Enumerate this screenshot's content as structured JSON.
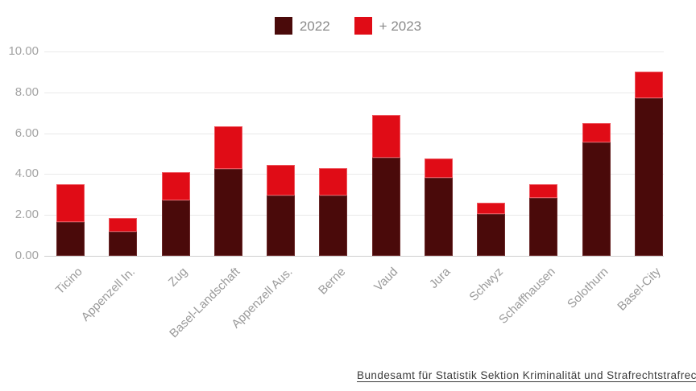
{
  "chart_data": {
    "type": "bar",
    "stacked": true,
    "title": "",
    "xlabel": "",
    "ylabel": "",
    "categories": [
      "Ticino",
      "Appenzell In.",
      "Zug",
      "Basel-Landschaft",
      "Appenzell Aus.",
      "Berne",
      "Vaud",
      "Jura",
      "Schwyz",
      "Schaffhausen",
      "Solothurn",
      "Basel-City"
    ],
    "series": [
      {
        "name": "2022",
        "color": "#4A0A0A",
        "values": [
          1.65,
          1.2,
          2.7,
          4.25,
          2.95,
          2.95,
          4.8,
          3.8,
          2.05,
          2.85,
          5.55,
          7.7
        ]
      },
      {
        "name": "+ 2023",
        "color": "#E00C16",
        "values": [
          1.85,
          0.65,
          1.4,
          2.1,
          1.5,
          1.35,
          2.1,
          0.95,
          0.55,
          0.65,
          0.95,
          1.3
        ]
      }
    ],
    "stacked_totals": [
      3.5,
      1.85,
      4.1,
      6.35,
      4.45,
      4.3,
      6.9,
      4.75,
      2.6,
      3.5,
      6.5,
      9.0
    ],
    "ylim": [
      0,
      10
    ],
    "yticks": [
      {
        "value": 0,
        "label": "0.00"
      },
      {
        "value": 2,
        "label": "2.00"
      },
      {
        "value": 4,
        "label": "4.00"
      },
      {
        "value": 6,
        "label": "6.00"
      },
      {
        "value": 8,
        "label": "8.00"
      },
      {
        "value": 10,
        "label": "10.00"
      }
    ],
    "grid": "horizontal",
    "legend_position": "top-center"
  },
  "source": {
    "label": "Bundesamt für Statistik Sektion Kriminalität und Strafrechtstrafrec"
  },
  "colors": {
    "series_2022": "#4A0A0A",
    "series_2023": "#E00C16",
    "gridline": "#E9E9E9",
    "baseline": "#CFCFCF",
    "axis_text": "#A3A3A3",
    "legend_text": "#8A8A8A",
    "source_text": "#3B3B3B",
    "background": "#FFFFFF"
  }
}
